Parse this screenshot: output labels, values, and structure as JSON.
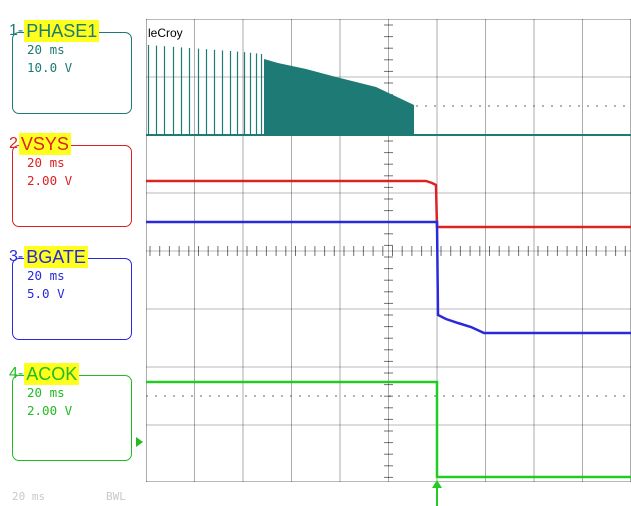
{
  "channels": [
    {
      "num": "1-",
      "name": "PHASE1",
      "timebase": "20 ms",
      "scale": "10.0 V",
      "color": "#1d7a74"
    },
    {
      "num": "2",
      "name": "VSYS",
      "timebase": "20 ms",
      "scale": "2.00 V",
      "color": "#dd2222"
    },
    {
      "num": "3-",
      "name": "BGATE",
      "timebase": "20 ms",
      "scale": "5.0 V",
      "color": "#2a2adc"
    },
    {
      "num": "4-",
      "name": "ACOK",
      "timebase": "20 ms",
      "scale": "2.00 V",
      "color": "#22bb22"
    }
  ],
  "brand": "leCroy",
  "footer": {
    "timebase": "20 ms",
    "bwl": "BWL"
  },
  "colors": {
    "phase1": "#1d7a74",
    "vsys": "#dd2222",
    "bgate": "#2a2adc",
    "acok": "#22cc22"
  }
}
